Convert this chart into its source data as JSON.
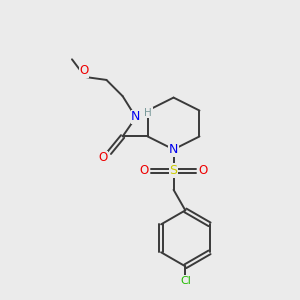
{
  "background_color": "#ebebeb",
  "atom_colors": {
    "C": "#3a3a3a",
    "N": "#0000ee",
    "O": "#ee0000",
    "S": "#cccc00",
    "Cl": "#22bb00",
    "H": "#7a9a9a"
  },
  "bond_color": "#3a3a3a",
  "bond_lw": 1.4,
  "font_size": 8.5
}
